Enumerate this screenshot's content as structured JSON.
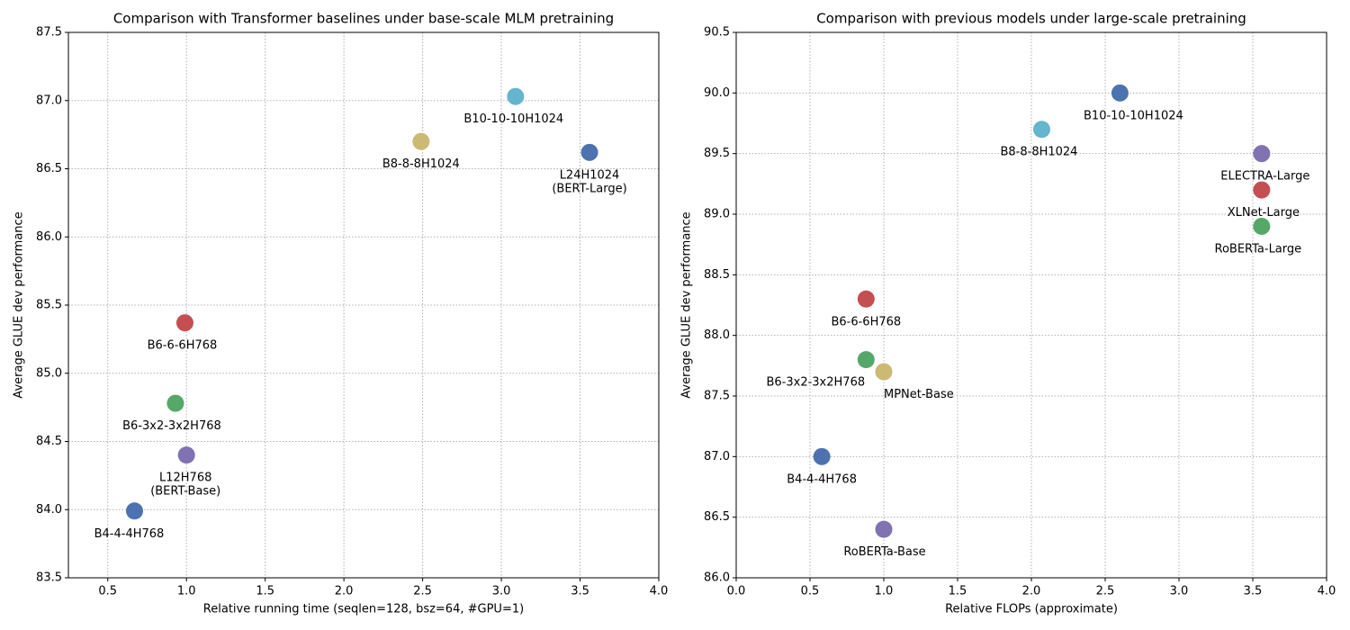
{
  "chart_data": [
    {
      "type": "scatter",
      "title": "Comparison with Transformer baselines under base-scale MLM pretraining",
      "x_label": "Relative running time (seqlen=128, bsz=64, #GPU=1)",
      "y_label": "Average GLUE dev performance",
      "x": [
        3.09,
        2.49,
        3.56,
        0.99,
        0.93,
        1.0,
        0.67
      ],
      "values": [
        87.03,
        86.7,
        86.62,
        85.37,
        84.78,
        84.4,
        83.99
      ],
      "labels": [
        [
          "B10-10-10H1024"
        ],
        [
          "B8-8-8H1024"
        ],
        [
          "L24H1024",
          "(BERT-Large)"
        ],
        [
          "B6-6-6H768"
        ],
        [
          "B6-3x2-3x2H768"
        ],
        [
          "L12H768",
          "(BERT-Base)"
        ],
        [
          "B4-4-4H768"
        ]
      ],
      "colors": [
        "#64b5cd",
        "#ccb974",
        "#4c72b0",
        "#c44e52",
        "#55a868",
        "#8172b2",
        "#4c72b0"
      ],
      "xlim": [
        0.25,
        4.0
      ],
      "xticks": [
        0.5,
        {
          "value": 1,
          "label": "1.0"
        },
        1.5,
        {
          "value": 2,
          "label": "2.0"
        },
        2.5,
        {
          "value": 3,
          "label": "3.0"
        },
        3.5,
        {
          "value": 4,
          "label": "4.0"
        }
      ],
      "ylim": [
        83.5,
        87.5
      ],
      "yticks": [
        83.5,
        {
          "value": 84,
          "label": "84.0"
        },
        84.5,
        {
          "value": 85,
          "label": "85.0"
        },
        85.5,
        {
          "value": 86,
          "label": "86.0"
        },
        86.5,
        {
          "value": 87,
          "label": "87.0"
        },
        87.5
      ],
      "grid": true
    },
    {
      "type": "scatter",
      "title": "Comparison with previous models under large-scale pretraining",
      "x_label": "Relative FLOPs (approximate)",
      "y_label": "Average GLUE dev performance",
      "x": [
        2.6,
        2.07,
        3.56,
        3.56,
        3.56,
        0.88,
        0.88,
        1.0,
        0.58,
        1.0
      ],
      "values": [
        90.0,
        89.7,
        89.5,
        89.2,
        88.9,
        88.3,
        87.8,
        87.7,
        87.0,
        86.4
      ],
      "labels": [
        [
          "B10-10-10H1024"
        ],
        [
          "B8-8-8H1024"
        ],
        [
          "ELECTRA-Large"
        ],
        [
          "XLNet-Large"
        ],
        [
          "RoBERTa-Large"
        ],
        [
          "B6-6-6H768"
        ],
        [
          "B6-3x2-3x2H768"
        ],
        [
          "MPNet-Base"
        ],
        [
          "B4-4-4H768"
        ],
        [
          "RoBERTa-Base"
        ]
      ],
      "colors": [
        "#4c72b0",
        "#64b5cd",
        "#8172b2",
        "#c44e52",
        "#55a868",
        "#c44e52",
        "#55a868",
        "#ccb974",
        "#4c72b0",
        "#8172b2"
      ],
      "xlim": [
        0,
        4
      ],
      "xticks": [
        {
          "value": 0,
          "label": "0.0"
        },
        0.5,
        {
          "value": 1,
          "label": "1.0"
        },
        1.5,
        {
          "value": 2,
          "label": "2.0"
        },
        2.5,
        {
          "value": 3,
          "label": "3.0"
        },
        3.5,
        {
          "value": 4,
          "label": "4.0"
        }
      ],
      "ylim": [
        86,
        90.5
      ],
      "yticks": [
        {
          "value": 86,
          "label": "86.0"
        },
        86.5,
        {
          "value": 87,
          "label": "87.0"
        },
        87.5,
        {
          "value": 88,
          "label": "88.0"
        },
        88.5,
        {
          "value": 89,
          "label": "89.0"
        },
        89.5,
        {
          "value": 90,
          "label": "90.0"
        },
        90.5
      ],
      "grid": true
    }
  ]
}
